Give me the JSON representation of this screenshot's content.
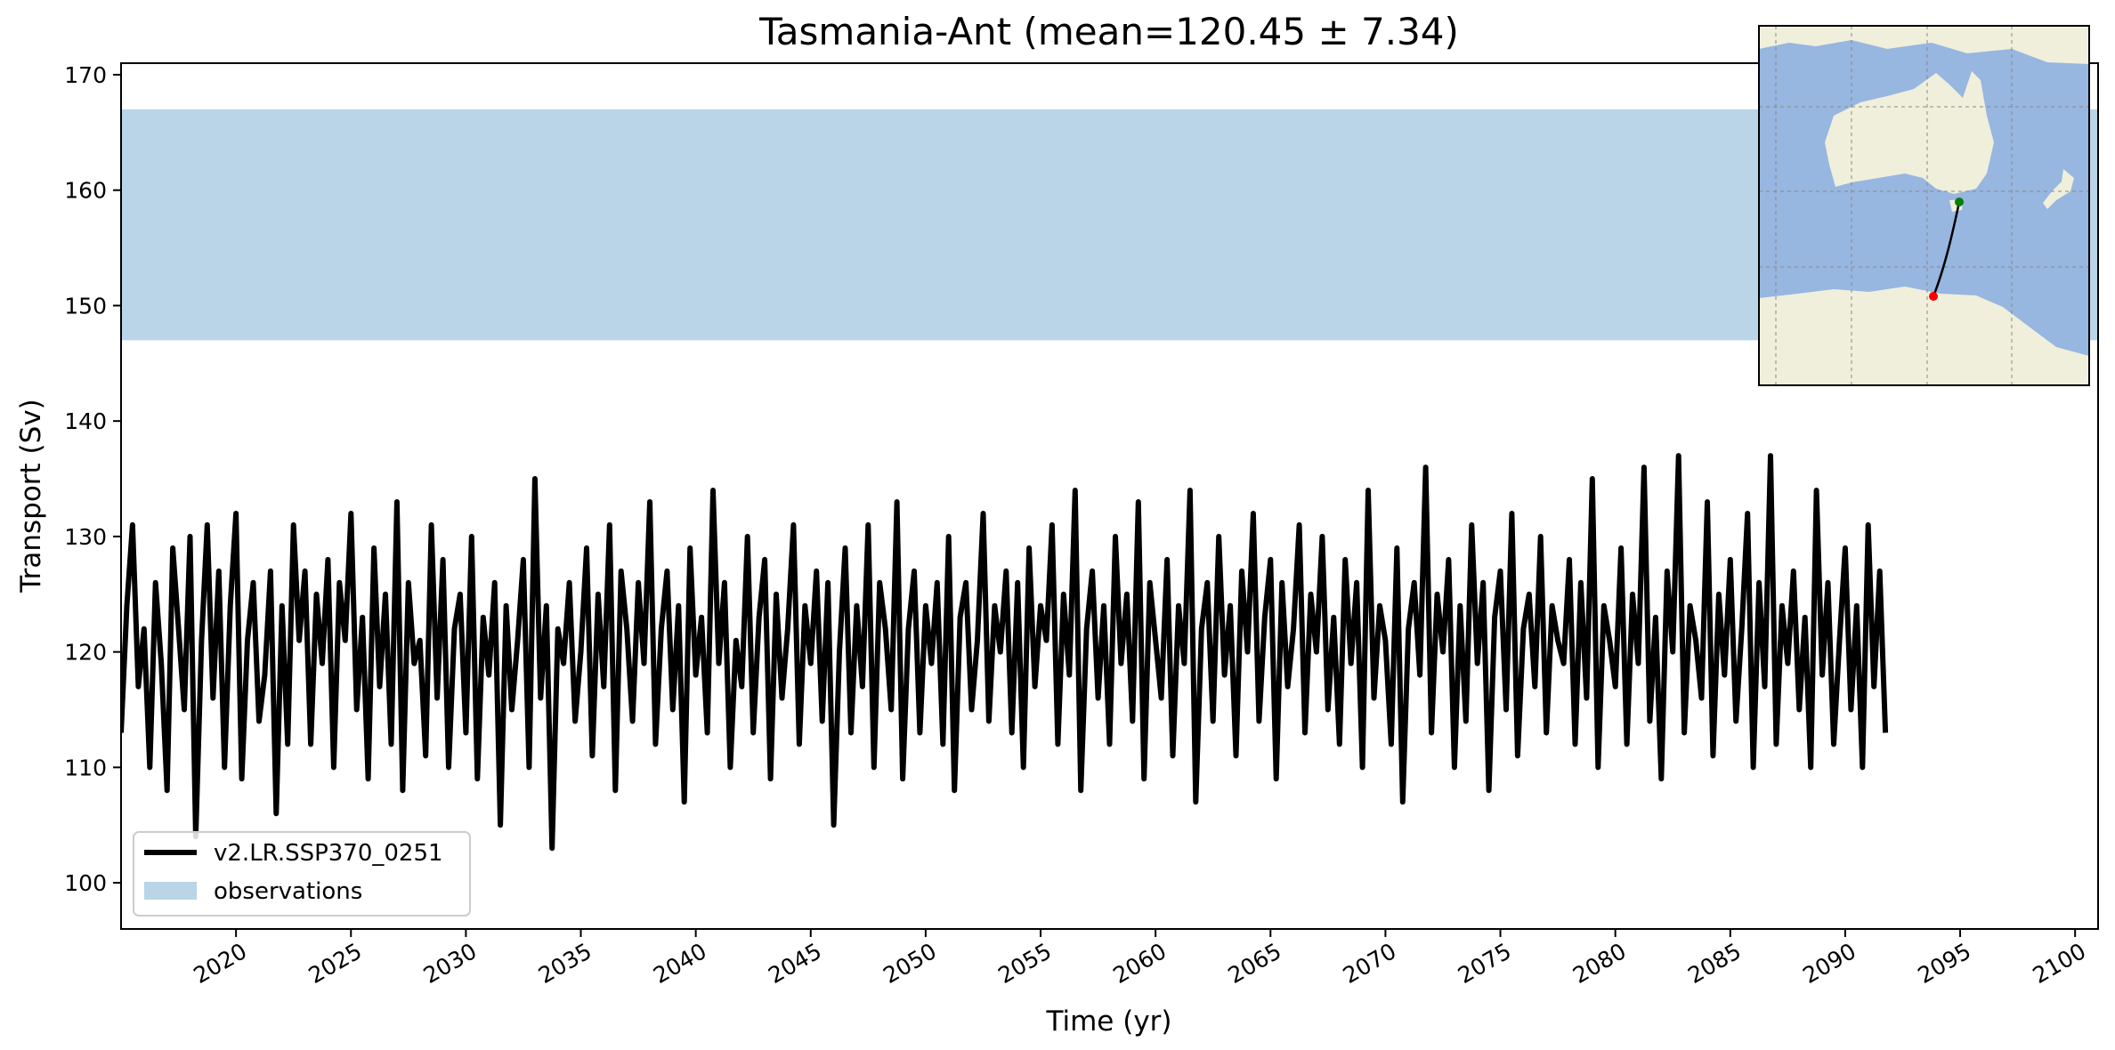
{
  "chart_data": {
    "type": "line",
    "title": "Tasmania-Ant (mean=120.45 ± 7.34)",
    "xlabel": "Time (yr)",
    "ylabel": "Transport (Sv)",
    "xlim": [
      2015,
      2101
    ],
    "ylim": [
      96,
      171
    ],
    "xticks": [
      2020,
      2025,
      2030,
      2035,
      2040,
      2045,
      2050,
      2055,
      2060,
      2065,
      2070,
      2075,
      2080,
      2085,
      2090,
      2095,
      2100
    ],
    "yticks": [
      100,
      110,
      120,
      130,
      140,
      150,
      160,
      170
    ],
    "grid": false,
    "legend": {
      "position": "lower-left"
    },
    "series": [
      {
        "name": "v2.LR.SSP370_0251",
        "kind": "line",
        "color": "#000000",
        "x_start": 2015,
        "x_step_years": 0.08333333333333333,
        "mean": 120.45,
        "std": 7.34,
        "values_monthly_sampled_every_3_months": [
          113,
          124,
          131,
          117,
          122,
          110,
          126,
          119,
          108,
          129,
          122,
          115,
          130,
          104,
          121,
          131,
          116,
          127,
          110,
          124,
          132,
          109,
          121,
          126,
          114,
          118,
          127,
          106,
          124,
          112,
          131,
          121,
          127,
          112,
          125,
          119,
          128,
          110,
          126,
          121,
          132,
          115,
          123,
          109,
          129,
          117,
          125,
          112,
          133,
          108,
          126,
          119,
          121,
          111,
          131,
          116,
          128,
          110,
          122,
          125,
          113,
          130,
          109,
          123,
          118,
          126,
          105,
          124,
          115,
          121,
          128,
          110,
          135,
          116,
          124,
          103,
          122,
          119,
          126,
          114,
          120,
          129,
          111,
          125,
          117,
          131,
          108,
          127,
          122,
          114,
          126,
          119,
          133,
          112,
          122,
          127,
          115,
          124,
          107,
          129,
          118,
          123,
          113,
          134,
          119,
          126,
          110,
          121,
          117,
          130,
          113,
          123,
          128,
          109,
          125,
          116,
          122,
          131,
          112,
          124,
          119,
          127,
          114,
          126,
          105,
          120,
          129,
          113,
          124,
          117,
          131,
          110,
          126,
          122,
          115,
          133,
          109,
          122,
          127,
          113,
          124,
          119,
          126,
          112,
          130,
          108,
          123,
          126,
          115,
          121,
          132,
          114,
          124,
          120,
          127,
          113,
          126,
          110,
          129,
          117,
          124,
          121,
          131,
          112,
          125,
          118,
          134,
          108,
          122,
          127,
          116,
          124,
          112,
          130,
          119,
          125,
          114,
          133,
          109,
          126,
          121,
          116,
          128,
          111,
          124,
          119,
          134,
          107,
          122,
          126,
          114,
          130,
          118,
          124,
          111,
          127,
          120,
          132,
          114,
          123,
          128,
          109,
          126,
          117,
          122,
          131,
          113,
          125,
          120,
          130,
          115,
          123,
          112,
          128,
          119,
          126,
          110,
          134,
          116,
          124,
          121,
          112,
          129,
          107,
          122,
          126,
          118,
          136,
          113,
          125,
          120,
          128,
          110,
          124,
          114,
          131,
          119,
          126,
          108,
          123,
          127,
          115,
          132,
          111,
          122,
          125,
          117,
          130,
          113,
          124,
          121,
          119,
          128,
          112,
          126,
          116,
          135,
          110,
          124,
          121,
          117,
          129,
          112,
          125,
          119,
          136,
          114,
          123,
          109,
          127,
          120,
          137,
          113,
          124,
          121,
          116,
          133,
          111,
          125,
          118,
          128,
          114,
          122,
          132,
          110,
          126,
          117,
          137,
          112,
          124,
          119,
          127,
          115,
          123,
          110,
          134,
          118,
          126,
          112,
          121,
          129,
          115,
          124,
          110,
          131,
          117,
          127,
          113
        ]
      },
      {
        "name": "observations",
        "kind": "band",
        "color": "#b9d5e7",
        "y_low": 147,
        "y_high": 167
      }
    ],
    "inset_map": {
      "type": "map",
      "description": "Australia and Antarctica section map",
      "ocean_color": "#97b6e0",
      "land_color": "#efefdc",
      "markers": [
        {
          "label": "start",
          "color": "#008000"
        },
        {
          "label": "end",
          "color": "#ff0000"
        }
      ]
    }
  }
}
